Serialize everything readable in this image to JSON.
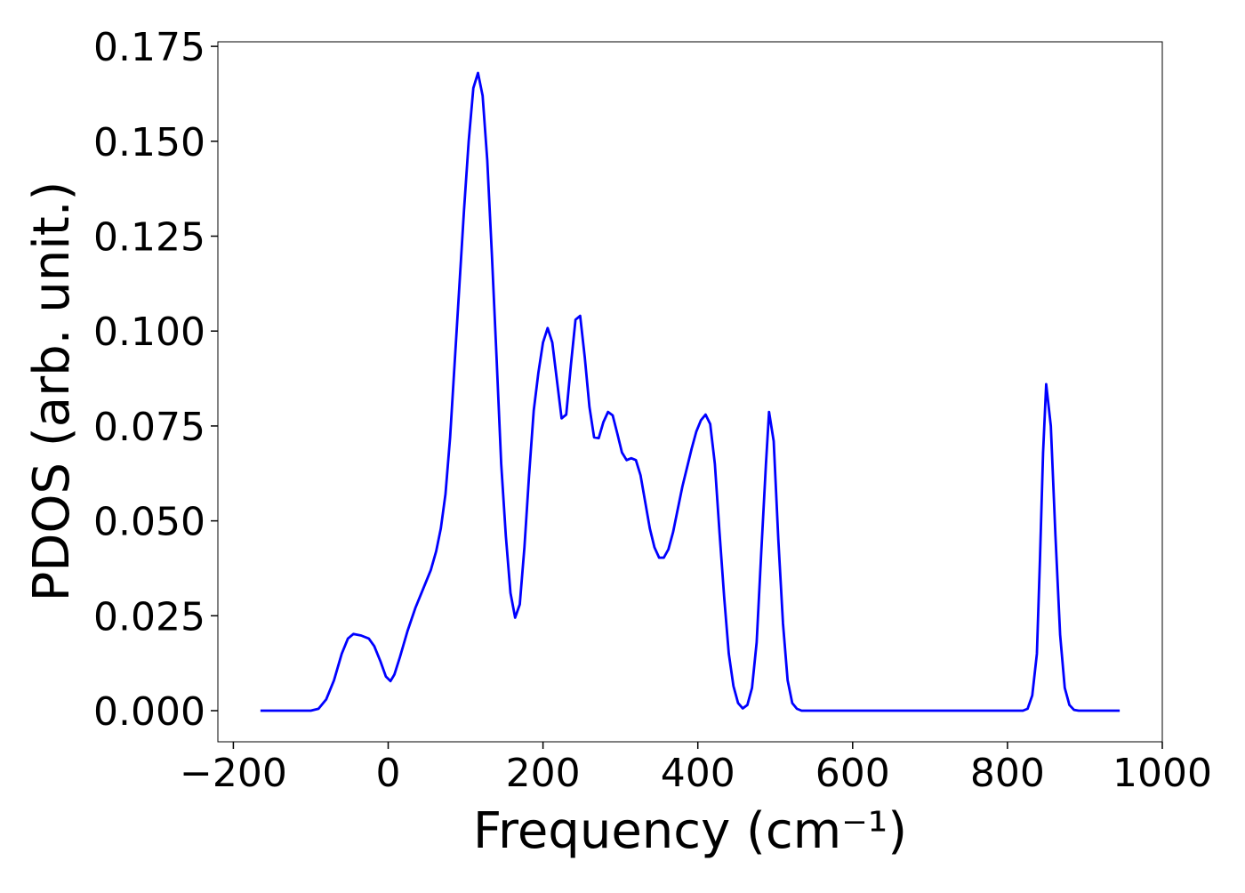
{
  "chart_data": {
    "type": "line",
    "xlabel": "Frequency (cm⁻¹)",
    "ylabel": "PDOS (arb. unit.)",
    "xlim": [
      -220,
      1000
    ],
    "ylim": [
      -0.0082,
      0.1762
    ],
    "xticks": [
      {
        "value": -200,
        "label": "−200"
      },
      0,
      200,
      400,
      600,
      800,
      1000
    ],
    "yticks": [
      {
        "value": 0,
        "label": "0.000"
      },
      {
        "value": 0.025,
        "label": "0.025"
      },
      {
        "value": 0.05,
        "label": "0.050"
      },
      {
        "value": 0.075,
        "label": "0.075"
      },
      {
        "value": 0.1,
        "label": "0.100"
      },
      {
        "value": 0.125,
        "label": "0.125"
      },
      {
        "value": 0.15,
        "label": "0.150"
      },
      {
        "value": 0.175,
        "label": "0.175"
      }
    ],
    "x": [
      -165,
      -100,
      -90,
      -80,
      -70,
      -60,
      -52,
      -45,
      -35,
      -25,
      -18,
      -10,
      -3,
      3,
      8,
      15,
      25,
      35,
      45,
      55,
      62,
      68,
      74,
      80,
      86,
      92,
      98,
      104,
      110,
      116,
      122,
      128,
      134,
      140,
      146,
      152,
      158,
      164,
      170,
      176,
      182,
      188,
      194,
      200,
      206,
      212,
      218,
      224,
      230,
      236,
      242,
      248,
      254,
      260,
      266,
      272,
      278,
      284,
      290,
      296,
      302,
      308,
      314,
      320,
      326,
      332,
      338,
      344,
      350,
      356,
      362,
      368,
      374,
      380,
      386,
      392,
      398,
      404,
      410,
      416,
      422,
      428,
      434,
      440,
      446,
      452,
      458,
      464,
      470,
      476,
      482,
      488,
      492,
      498,
      504,
      510,
      516,
      522,
      528,
      534,
      820,
      826,
      832,
      838,
      842,
      846,
      850,
      856,
      862,
      868,
      874,
      880,
      886,
      892,
      945
    ],
    "series": [
      {
        "color": "#0000ff",
        "values": [
          0,
          0,
          0.0005,
          0.003,
          0.008,
          0.015,
          0.019,
          0.0202,
          0.0198,
          0.019,
          0.017,
          0.013,
          0.009,
          0.0078,
          0.0095,
          0.014,
          0.021,
          0.027,
          0.032,
          0.037,
          0.042,
          0.048,
          0.057,
          0.072,
          0.092,
          0.112,
          0.132,
          0.15,
          0.164,
          0.168,
          0.162,
          0.145,
          0.12,
          0.093,
          0.065,
          0.046,
          0.031,
          0.0245,
          0.028,
          0.043,
          0.062,
          0.079,
          0.089,
          0.097,
          0.1008,
          0.097,
          0.087,
          0.077,
          0.078,
          0.091,
          0.103,
          0.104,
          0.093,
          0.08,
          0.072,
          0.0718,
          0.076,
          0.0787,
          0.0778,
          0.073,
          0.068,
          0.066,
          0.0665,
          0.066,
          0.062,
          0.055,
          0.048,
          0.043,
          0.0403,
          0.0403,
          0.0425,
          0.047,
          0.053,
          0.059,
          0.064,
          0.069,
          0.0735,
          0.0765,
          0.078,
          0.0755,
          0.065,
          0.047,
          0.03,
          0.015,
          0.0065,
          0.002,
          0.0006,
          0.0015,
          0.006,
          0.018,
          0.042,
          0.065,
          0.0787,
          0.071,
          0.045,
          0.023,
          0.008,
          0.002,
          0.0005,
          0,
          0,
          0.0005,
          0.004,
          0.015,
          0.04,
          0.068,
          0.086,
          0.075,
          0.046,
          0.02,
          0.006,
          0.0015,
          0.0002,
          0,
          0
        ]
      }
    ]
  }
}
